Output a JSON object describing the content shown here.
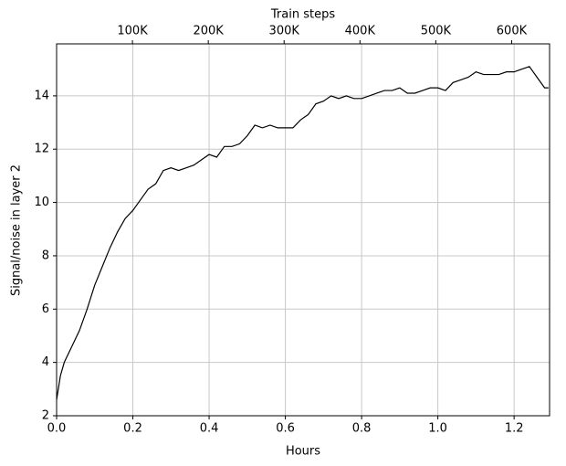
{
  "chart_data": {
    "type": "line",
    "xlabel": "Hours",
    "ylabel": "Signal/noise in layer 2",
    "x2label": "Train steps",
    "x": [
      0,
      0.01,
      0.02,
      0.04,
      0.06,
      0.08,
      0.1,
      0.12,
      0.14,
      0.16,
      0.18,
      0.2,
      0.22,
      0.24,
      0.26,
      0.28,
      0.3,
      0.32,
      0.34,
      0.36,
      0.38,
      0.4,
      0.42,
      0.44,
      0.46,
      0.48,
      0.5,
      0.52,
      0.54,
      0.56,
      0.58,
      0.6,
      0.62,
      0.64,
      0.66,
      0.68,
      0.7,
      0.72,
      0.74,
      0.76,
      0.78,
      0.8,
      0.82,
      0.84,
      0.86,
      0.88,
      0.9,
      0.92,
      0.94,
      0.96,
      0.98,
      1.0,
      1.02,
      1.04,
      1.06,
      1.08,
      1.1,
      1.12,
      1.14,
      1.16,
      1.18,
      1.2,
      1.22,
      1.24,
      1.26,
      1.28,
      1.29
    ],
    "values": [
      2.6,
      3.5,
      4.0,
      4.6,
      5.2,
      6.0,
      6.9,
      7.6,
      8.3,
      8.9,
      9.4,
      9.7,
      10.1,
      10.5,
      10.7,
      11.2,
      11.3,
      11.2,
      11.3,
      11.4,
      11.6,
      11.8,
      11.7,
      12.1,
      12.1,
      12.2,
      12.5,
      12.9,
      12.8,
      12.9,
      12.8,
      12.8,
      12.8,
      13.1,
      13.3,
      13.7,
      13.8,
      14.0,
      13.9,
      14.0,
      13.9,
      13.9,
      14.0,
      14.1,
      14.2,
      14.2,
      14.3,
      14.1,
      14.1,
      14.2,
      14.3,
      14.3,
      14.2,
      14.5,
      14.6,
      14.7,
      14.9,
      14.8,
      14.8,
      14.8,
      14.9,
      14.9,
      15.0,
      15.1,
      14.7,
      14.3,
      14.3
    ],
    "color": "#000000",
    "xlim": [
      0,
      1.293
    ],
    "ylim": [
      2,
      15.95
    ],
    "x2lim": [
      0,
      650000
    ],
    "xticks": [
      {
        "value": 0,
        "label": "0.0"
      },
      0.2,
      0.4,
      0.6,
      0.8,
      {
        "value": 1,
        "label": "1.0"
      },
      1.2
    ],
    "yticks": [
      2,
      4,
      6,
      8,
      10,
      12,
      14
    ],
    "x2ticks": [
      {
        "value": 100000,
        "label": "100K"
      },
      {
        "value": 200000,
        "label": "200K"
      },
      {
        "value": 300000,
        "label": "300K"
      },
      {
        "value": 400000,
        "label": "400K"
      },
      {
        "value": 500000,
        "label": "500K"
      },
      {
        "value": 600000,
        "label": "600K"
      }
    ],
    "grid": true
  }
}
